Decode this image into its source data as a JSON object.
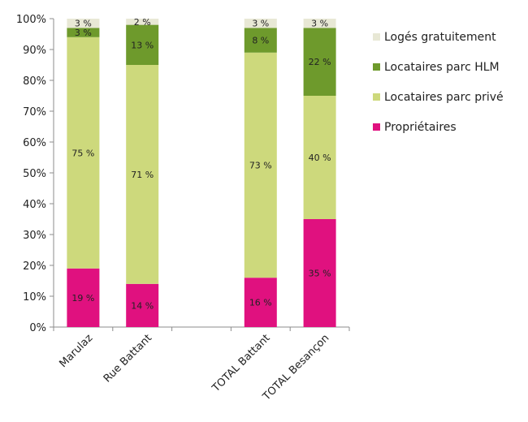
{
  "chart_data": {
    "type": "bar",
    "stacked": true,
    "ylim": [
      0,
      100
    ],
    "yticks": [
      "0%",
      "10%",
      "20%",
      "30%",
      "40%",
      "50%",
      "60%",
      "70%",
      "80%",
      "90%",
      "100%"
    ],
    "categories": [
      "Marulaz",
      "Rue Battant",
      "",
      "TOTAL Battant",
      "TOTAL Besançon"
    ],
    "series": [
      {
        "name": "Propriétaires",
        "color": "#e0117f",
        "values": [
          19,
          14,
          null,
          16,
          35
        ],
        "labels": [
          "19 %",
          "14 %",
          "",
          "16 %",
          "35 %"
        ]
      },
      {
        "name": "Locataires parc privé",
        "color": "#cdd97c",
        "values": [
          75,
          71,
          null,
          73,
          40
        ],
        "labels": [
          "75 %",
          "71 %",
          "",
          "73 %",
          "40 %"
        ]
      },
      {
        "name": "Locataires parc HLM",
        "color": "#6e9a2c",
        "values": [
          3,
          13,
          null,
          8,
          22
        ],
        "labels": [
          "3 %",
          "13 %",
          "",
          "8 %",
          "22 %"
        ]
      },
      {
        "name": "Logés gratuitement",
        "color": "#e8e8d5",
        "values": [
          3,
          2,
          null,
          3,
          3
        ],
        "labels": [
          "3 %",
          "2 %",
          "",
          "3 %",
          "3 %"
        ]
      }
    ],
    "legend_position": "right",
    "grid": false
  }
}
